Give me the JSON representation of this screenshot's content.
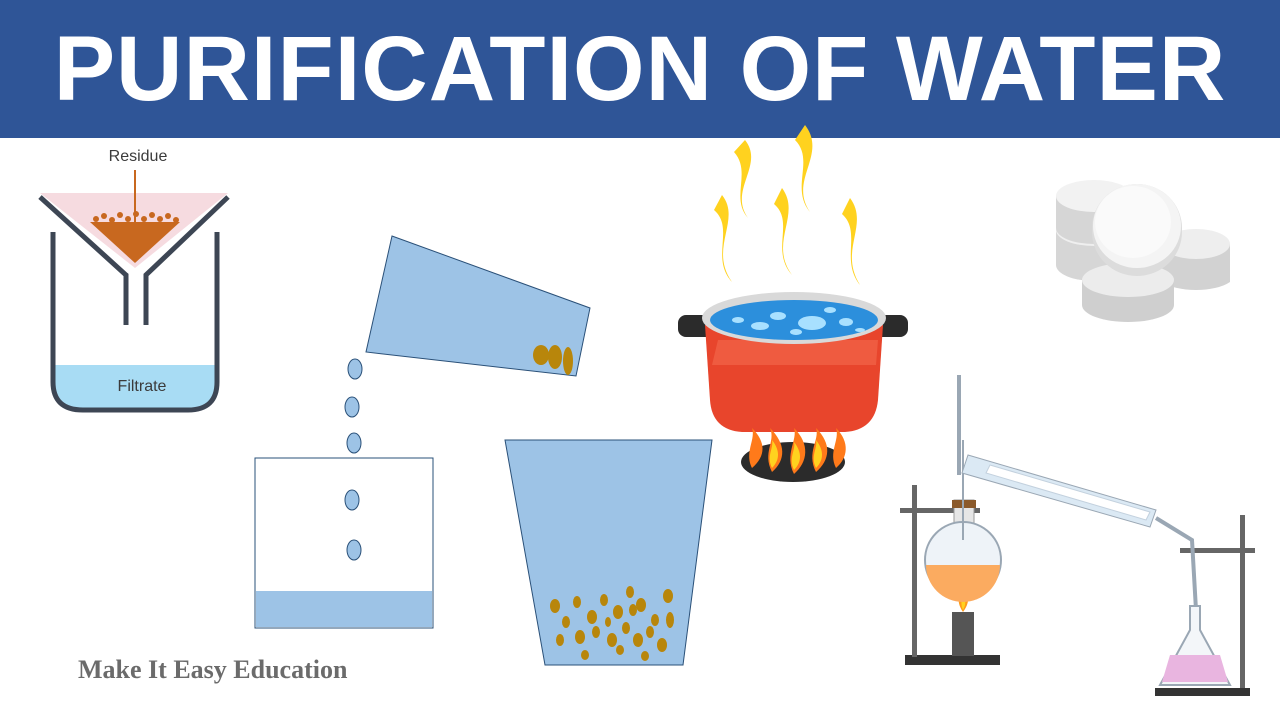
{
  "title": "PURIFICATION OF WATER",
  "filtration": {
    "residue_label": "Residue",
    "filtrate_label": "Filtrate"
  },
  "credit": "Make It Easy Education",
  "icons": [
    "filtration-funnel-icon",
    "decantation-icon",
    "sedimentation-beaker-icon",
    "boiling-pot-icon",
    "flame-icon",
    "chlorine-tablets-icon",
    "distillation-apparatus-icon"
  ],
  "colors": {
    "title_bar": "#2f5597",
    "water": "#9dc3e6",
    "sediment": "#b8860b",
    "pot": "#e8452c",
    "flame": "#ffd21f"
  }
}
